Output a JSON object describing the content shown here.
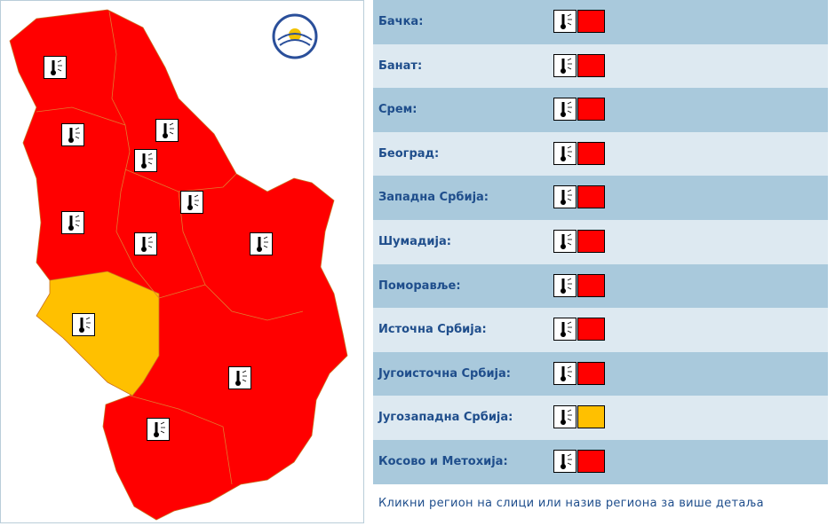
{
  "regions": [
    {
      "name": "Бачка:",
      "color": "#ff0000"
    },
    {
      "name": "Банат:",
      "color": "#ff0000"
    },
    {
      "name": "Срем:",
      "color": "#ff0000"
    },
    {
      "name": "Београд:",
      "color": "#ff0000"
    },
    {
      "name": "Западна Србија:",
      "color": "#ff0000"
    },
    {
      "name": "Шумадија:",
      "color": "#ff0000"
    },
    {
      "name": "Поморавље:",
      "color": "#ff0000"
    },
    {
      "name": "Источна Србија:",
      "color": "#ff0000"
    },
    {
      "name": "Југоисточна Србија:",
      "color": "#ff0000"
    },
    {
      "name": "Југозападна Србија:",
      "color": "#ffc000"
    },
    {
      "name": "Косово и Метохија:",
      "color": "#ff0000"
    }
  ],
  "footer": "Кликни регион на слици или назив региона за више детаља"
}
